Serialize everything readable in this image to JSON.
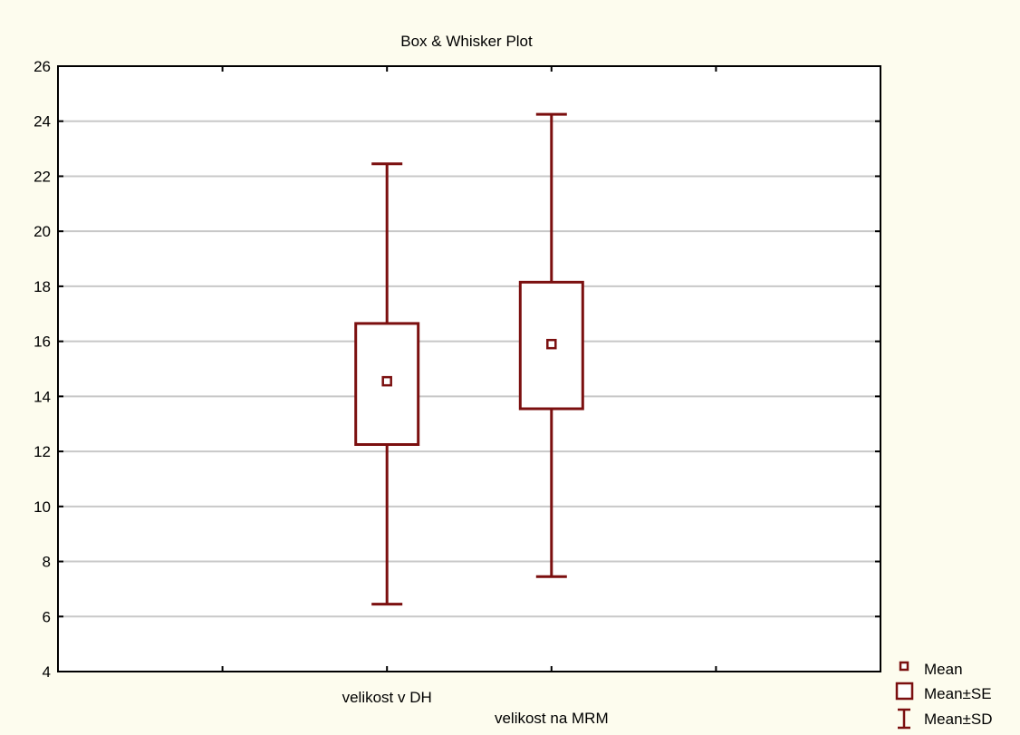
{
  "chart_data": {
    "type": "box",
    "title": "Box & Whisker Plot",
    "ylim": [
      4,
      26
    ],
    "yticks": [
      4,
      6,
      8,
      10,
      12,
      14,
      16,
      18,
      20,
      22,
      24,
      26
    ],
    "grid": true,
    "categories": [
      "velikost v DH",
      "velikost na MRM"
    ],
    "series": [
      {
        "category": "velikost v DH",
        "mean": 14.55,
        "se_low": 12.25,
        "se_high": 16.65,
        "sd_low": 6.45,
        "sd_high": 22.45
      },
      {
        "category": "velikost na MRM",
        "mean": 15.9,
        "se_low": 13.55,
        "se_high": 18.15,
        "sd_low": 7.45,
        "sd_high": 24.25
      }
    ],
    "legend": {
      "position": "bottom-right",
      "items": [
        {
          "symbol": "mean",
          "label": "Mean"
        },
        {
          "symbol": "box",
          "label": "Mean±SE"
        },
        {
          "symbol": "whisker",
          "label": "Mean±SD"
        }
      ]
    },
    "colors": {
      "series": "#7b0f0f",
      "grid": "#c8c8c8",
      "background": "#fdfcee"
    }
  }
}
